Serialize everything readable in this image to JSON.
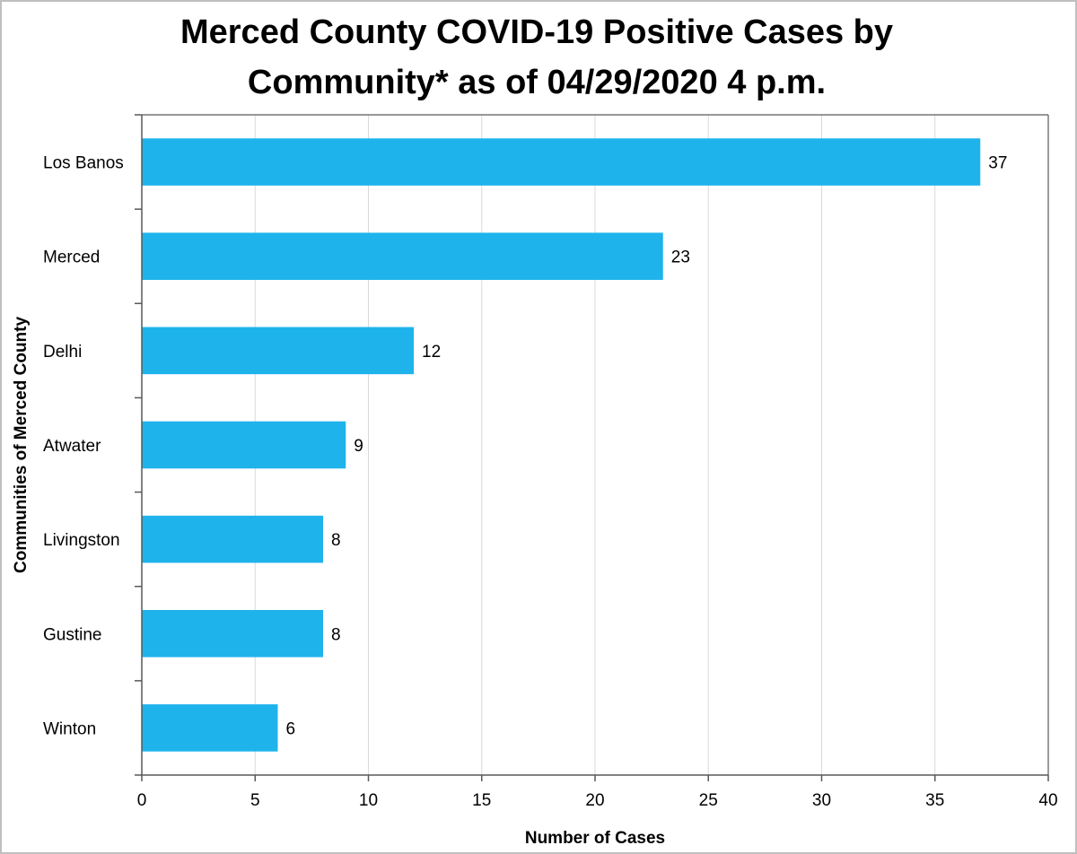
{
  "chart_data": {
    "type": "bar",
    "orientation": "horizontal",
    "title_lines": [
      "Merced County COVID-19 Positive Cases by",
      "Community* as of 04/29/2020 4 p.m."
    ],
    "xlabel": "Number of Cases",
    "ylabel": "Communities of Merced County",
    "categories": [
      "Los Banos",
      "Merced",
      "Delhi",
      "Atwater",
      "Livingston",
      "Gustine",
      "Winton"
    ],
    "values": [
      37,
      23,
      12,
      9,
      8,
      8,
      6
    ],
    "data_labels": [
      "37",
      "23",
      "12",
      "9",
      "8",
      "8",
      "6"
    ],
    "xlim": [
      0,
      40
    ],
    "xticks": [
      0,
      5,
      10,
      15,
      20,
      25,
      30,
      35,
      40
    ],
    "xtick_labels": [
      "0",
      "5",
      "10",
      "15",
      "20",
      "25",
      "30",
      "35",
      "40"
    ],
    "grid": true,
    "bar_color": "#1fb3ec",
    "grid_color": "#d9d9d9",
    "axis_color": "#595959"
  }
}
